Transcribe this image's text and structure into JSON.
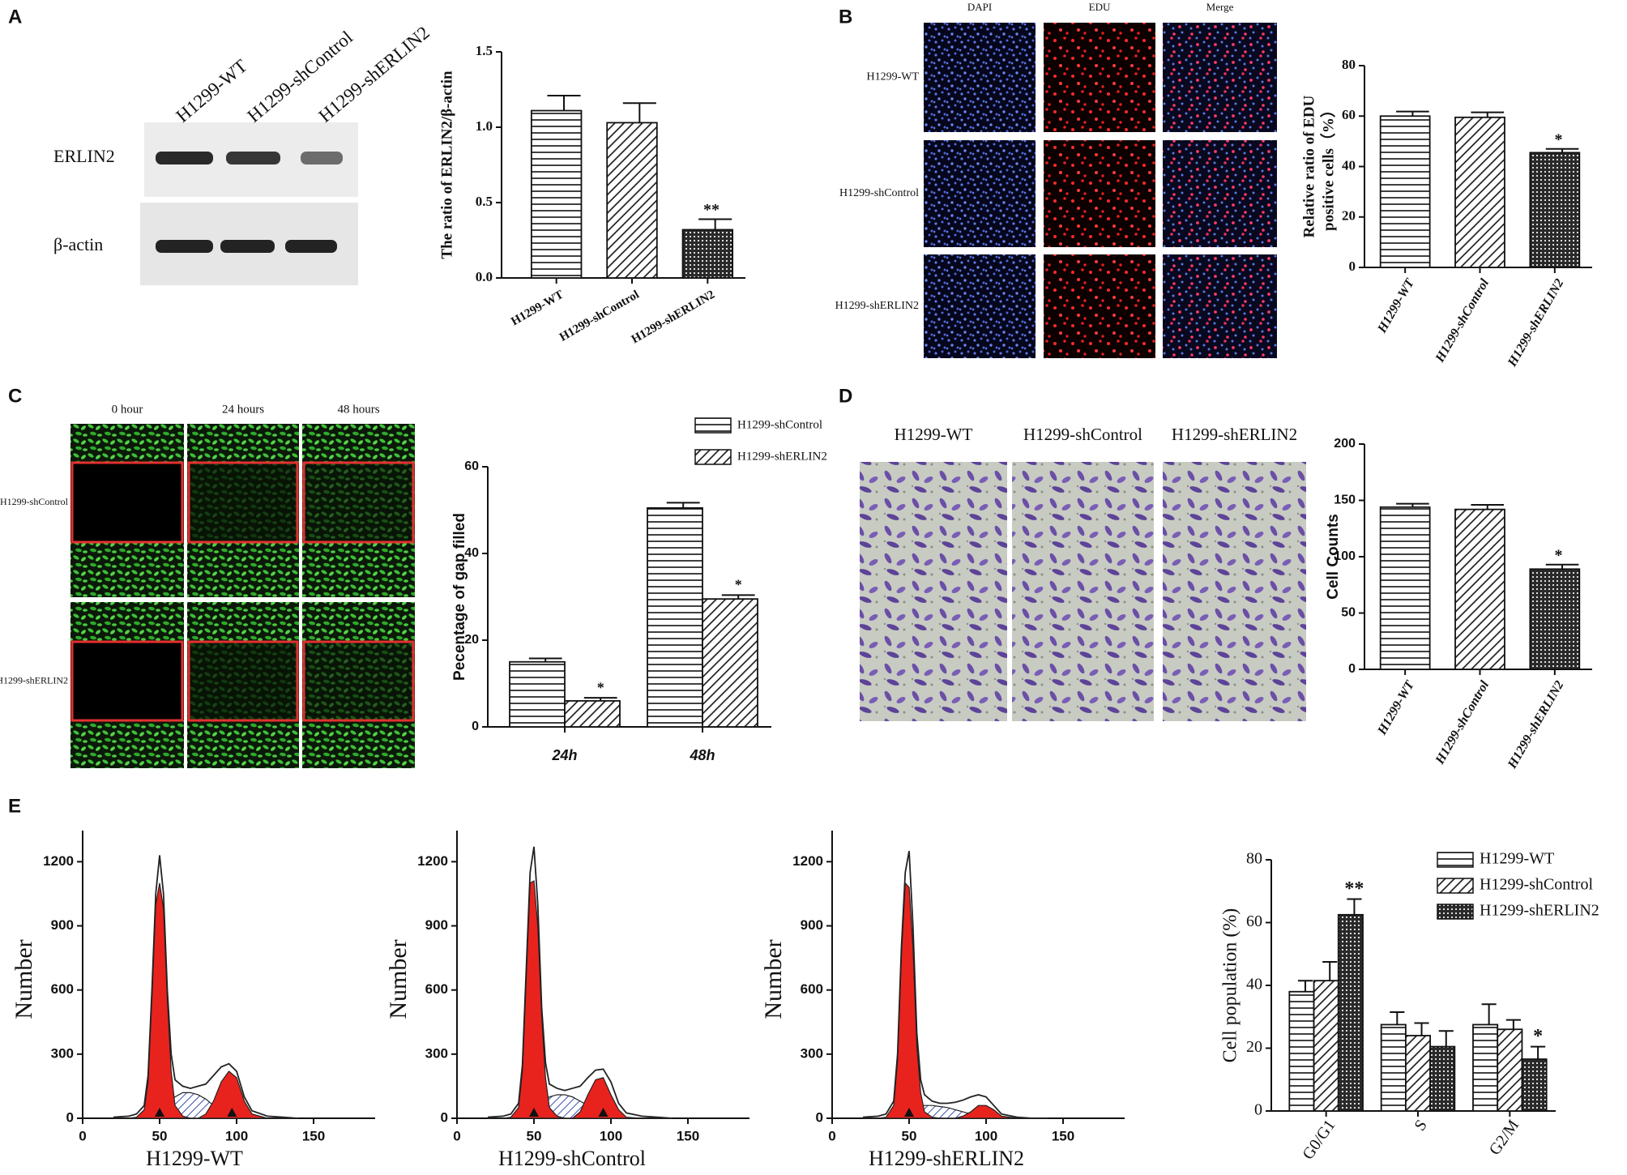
{
  "panel_labels": [
    "A",
    "B",
    "C",
    "D",
    "E"
  ],
  "blot": {
    "lanes": [
      "H1299-WT",
      "H1299-shControl",
      "H1299-shERLIN2"
    ],
    "rows": [
      "ERLIN2",
      "β-actin"
    ]
  },
  "edu_images": {
    "columns": [
      "DAPI",
      "EDU",
      "Merge"
    ],
    "rows": [
      "H1299-WT",
      "H1299-shControl",
      "H1299-shERLIN2"
    ]
  },
  "wound_images": {
    "columns": [
      "0 hour",
      "24 hours",
      "48 hours"
    ],
    "rows": [
      "H1299-shControl",
      "H1299-shERLIN2"
    ]
  },
  "transwell_images": {
    "columns": [
      "H1299-WT",
      "H1299-shControl",
      "H1299-shERLIN2"
    ]
  },
  "chart_data": [
    {
      "type": "bar",
      "ylabel": "The ratio of ERLIN2/β-actin",
      "categories": [
        "H1299-WT",
        "H1299-shControl",
        "H1299-shERLIN2"
      ],
      "values": [
        1.11,
        1.03,
        0.32
      ],
      "errors": [
        0.1,
        0.13,
        0.07
      ],
      "significance": [
        null,
        null,
        "**"
      ],
      "patterns": [
        "horizontal",
        "diagonal",
        "dots"
      ],
      "ylim": [
        0,
        1.5
      ],
      "yticks": [
        {
          "value": 0,
          "label": "0.0"
        },
        0.5,
        {
          "value": 1,
          "label": "1.0"
        },
        1.5
      ]
    },
    {
      "type": "bar",
      "ylabel": [
        "Relative ratio of EDU",
        "positive cells（%）"
      ],
      "categories": [
        "H1299-WT",
        "H1299-shControl",
        "H1299-shERLIN2"
      ],
      "values": [
        60,
        59.5,
        45.5
      ],
      "errors": [
        1.8,
        2,
        1.5
      ],
      "significance": [
        null,
        null,
        "*"
      ],
      "patterns": [
        "horizontal",
        "diagonal",
        "dots"
      ],
      "ylim": [
        0,
        80
      ],
      "yticks": [
        0,
        20,
        40,
        60,
        80
      ]
    },
    {
      "type": "grouped-bar",
      "ylabel": "Pecentage of gap filled",
      "categories": [
        "24h",
        "48h"
      ],
      "series": [
        {
          "name": "H1299-shControl",
          "pattern": "horizontal",
          "values": [
            15,
            50.5
          ],
          "errors": [
            0.8,
            1.2
          ]
        },
        {
          "name": "H1299-shERLIN2",
          "pattern": "diagonal",
          "values": [
            6,
            29.5
          ],
          "errors": [
            0.7,
            0.9
          ],
          "significance": [
            "*",
            "*"
          ]
        }
      ],
      "ylim": [
        0,
        60
      ],
      "yticks": [
        0,
        20,
        40,
        60
      ],
      "legend": "top"
    },
    {
      "type": "bar",
      "ylabel": "Cell Counts",
      "categories": [
        "H1299-WT",
        "H1299-shControl",
        "H1299-shERLIN2"
      ],
      "values": [
        144,
        142,
        89
      ],
      "errors": [
        3,
        4,
        4
      ],
      "significance": [
        null,
        null,
        "*"
      ],
      "patterns": [
        "horizontal",
        "diagonal",
        "dots"
      ],
      "ylim": [
        0,
        200
      ],
      "yticks": [
        0,
        50,
        100,
        150,
        200
      ]
    },
    {
      "type": "line",
      "xlabel": "H1299-WT",
      "ylabel": "Number",
      "x": [
        20,
        30,
        35,
        40,
        42.5,
        45,
        47.5,
        50,
        52.5,
        55,
        57.5,
        60,
        65,
        70,
        75,
        80,
        85,
        90,
        95,
        100,
        105,
        110,
        120,
        130,
        140
      ],
      "values": [
        5,
        10,
        20,
        60,
        200,
        600,
        1050,
        1230,
        1050,
        600,
        300,
        180,
        150,
        140,
        150,
        160,
        200,
        240,
        255,
        220,
        100,
        35,
        10,
        5,
        0
      ],
      "g1": [
        0,
        0,
        5,
        40,
        170,
        560,
        1000,
        1100,
        980,
        560,
        220,
        60,
        10,
        0,
        0,
        0,
        0,
        0,
        0,
        0,
        0,
        0,
        0,
        0,
        0
      ],
      "s": [
        0,
        0,
        0,
        0,
        5,
        10,
        20,
        30,
        40,
        60,
        80,
        100,
        120,
        120,
        110,
        90,
        60,
        40,
        20,
        10,
        0,
        0,
        0,
        0,
        0
      ],
      "g2": [
        0,
        0,
        0,
        0,
        0,
        0,
        0,
        0,
        0,
        0,
        0,
        0,
        0,
        0,
        0,
        20,
        80,
        170,
        220,
        190,
        80,
        20,
        0,
        0,
        0
      ],
      "markers": [
        50,
        97
      ],
      "xlim": [
        0,
        190
      ],
      "xticks": [
        0,
        50,
        100,
        150
      ],
      "ylim": [
        0,
        1300
      ],
      "yticks": [
        0,
        300,
        600,
        900,
        1200
      ]
    },
    {
      "type": "line",
      "xlabel": "H1299-shControl",
      "ylabel": "Number",
      "x": [
        20,
        30,
        35,
        40,
        42.5,
        45,
        47.5,
        50,
        52.5,
        55,
        57.5,
        60,
        65,
        70,
        75,
        80,
        85,
        90,
        95,
        100,
        105,
        110,
        120,
        130,
        140
      ],
      "values": [
        5,
        10,
        20,
        70,
        250,
        700,
        1150,
        1270,
        1000,
        520,
        260,
        160,
        140,
        130,
        140,
        150,
        190,
        225,
        230,
        170,
        70,
        25,
        10,
        5,
        0
      ],
      "g1": [
        0,
        0,
        5,
        50,
        220,
        660,
        1100,
        1110,
        900,
        480,
        190,
        50,
        10,
        0,
        0,
        0,
        0,
        0,
        0,
        0,
        0,
        0,
        0,
        0,
        0
      ],
      "s": [
        0,
        0,
        0,
        0,
        5,
        10,
        20,
        30,
        40,
        60,
        80,
        100,
        110,
        110,
        100,
        80,
        60,
        40,
        20,
        10,
        0,
        0,
        0,
        0,
        0
      ],
      "g2": [
        0,
        0,
        0,
        0,
        0,
        0,
        0,
        0,
        0,
        0,
        0,
        0,
        0,
        0,
        0,
        30,
        110,
        180,
        190,
        110,
        40,
        5,
        0,
        0,
        0
      ],
      "markers": [
        50,
        95
      ],
      "xlim": [
        0,
        190
      ],
      "xticks": [
        0,
        50,
        100,
        150
      ],
      "ylim": [
        0,
        1300
      ],
      "yticks": [
        0,
        300,
        600,
        900,
        1200
      ]
    },
    {
      "type": "line",
      "xlabel": "H1299-shERLIN2",
      "ylabel": "Number",
      "x": [
        20,
        30,
        35,
        40,
        42.5,
        45,
        47.5,
        50,
        52.5,
        55,
        57.5,
        60,
        65,
        70,
        75,
        80,
        85,
        90,
        95,
        100,
        105,
        110,
        120,
        130,
        140
      ],
      "values": [
        5,
        10,
        20,
        80,
        300,
        800,
        1150,
        1250,
        900,
        400,
        180,
        110,
        80,
        70,
        70,
        75,
        85,
        100,
        110,
        100,
        60,
        20,
        5,
        0,
        0
      ],
      "g1": [
        0,
        0,
        5,
        60,
        270,
        760,
        1100,
        1080,
        800,
        340,
        120,
        30,
        5,
        0,
        0,
        0,
        0,
        0,
        0,
        0,
        0,
        0,
        0,
        0,
        0
      ],
      "s": [
        0,
        0,
        0,
        0,
        5,
        10,
        20,
        30,
        40,
        50,
        55,
        60,
        60,
        55,
        50,
        40,
        30,
        20,
        10,
        5,
        0,
        0,
        0,
        0,
        0
      ],
      "g2": [
        0,
        0,
        0,
        0,
        0,
        0,
        0,
        0,
        0,
        0,
        0,
        0,
        0,
        0,
        0,
        0,
        10,
        30,
        60,
        60,
        40,
        10,
        0,
        0,
        0
      ],
      "markers": [
        50
      ],
      "xlim": [
        0,
        190
      ],
      "xticks": [
        0,
        50,
        100,
        150
      ],
      "ylim": [
        0,
        1300
      ],
      "yticks": [
        0,
        300,
        600,
        900,
        1200
      ]
    },
    {
      "type": "grouped-bar",
      "ylabel": "Cell population (%)",
      "categories": [
        "G0/G1",
        "S",
        "G2/M"
      ],
      "series": [
        {
          "name": "H1299-WT",
          "pattern": "horizontal",
          "values": [
            38,
            27.5,
            27.5
          ],
          "errors": [
            3.5,
            4,
            6.5
          ]
        },
        {
          "name": "H1299-shControl",
          "pattern": "diagonal",
          "values": [
            41.5,
            24,
            26
          ],
          "errors": [
            6,
            4,
            3
          ]
        },
        {
          "name": "H1299-shERLIN2",
          "pattern": "dots",
          "values": [
            62.5,
            20.5,
            16.5
          ],
          "errors": [
            5,
            5,
            4
          ],
          "significance": [
            "**",
            null,
            "*"
          ]
        }
      ],
      "ylim": [
        0,
        80
      ],
      "yticks": [
        0,
        20,
        40,
        60,
        80
      ],
      "legend": "top-right"
    }
  ]
}
